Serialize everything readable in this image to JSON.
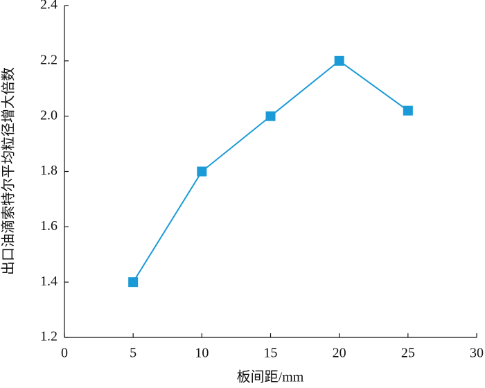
{
  "chart_data": {
    "type": "line",
    "x_label": "板间距/mm",
    "y_label": "出口油滴索特尔平均粒径增大倍数",
    "x": [
      5,
      10,
      15,
      20,
      25
    ],
    "series": [
      {
        "color": "#1a9ad6",
        "values": [
          1.4,
          1.8,
          2.0,
          2.2,
          2.02
        ]
      }
    ],
    "xlim": [
      0,
      30
    ],
    "xticks": [
      0,
      5,
      10,
      15,
      20,
      25,
      30
    ],
    "ylim": [
      1.2,
      2.4
    ],
    "yticks": [
      1.2,
      1.4,
      1.6,
      1.8,
      {
        "value": 2.0,
        "label": "2.0"
      },
      2.2,
      2.4
    ],
    "marker": "square"
  }
}
